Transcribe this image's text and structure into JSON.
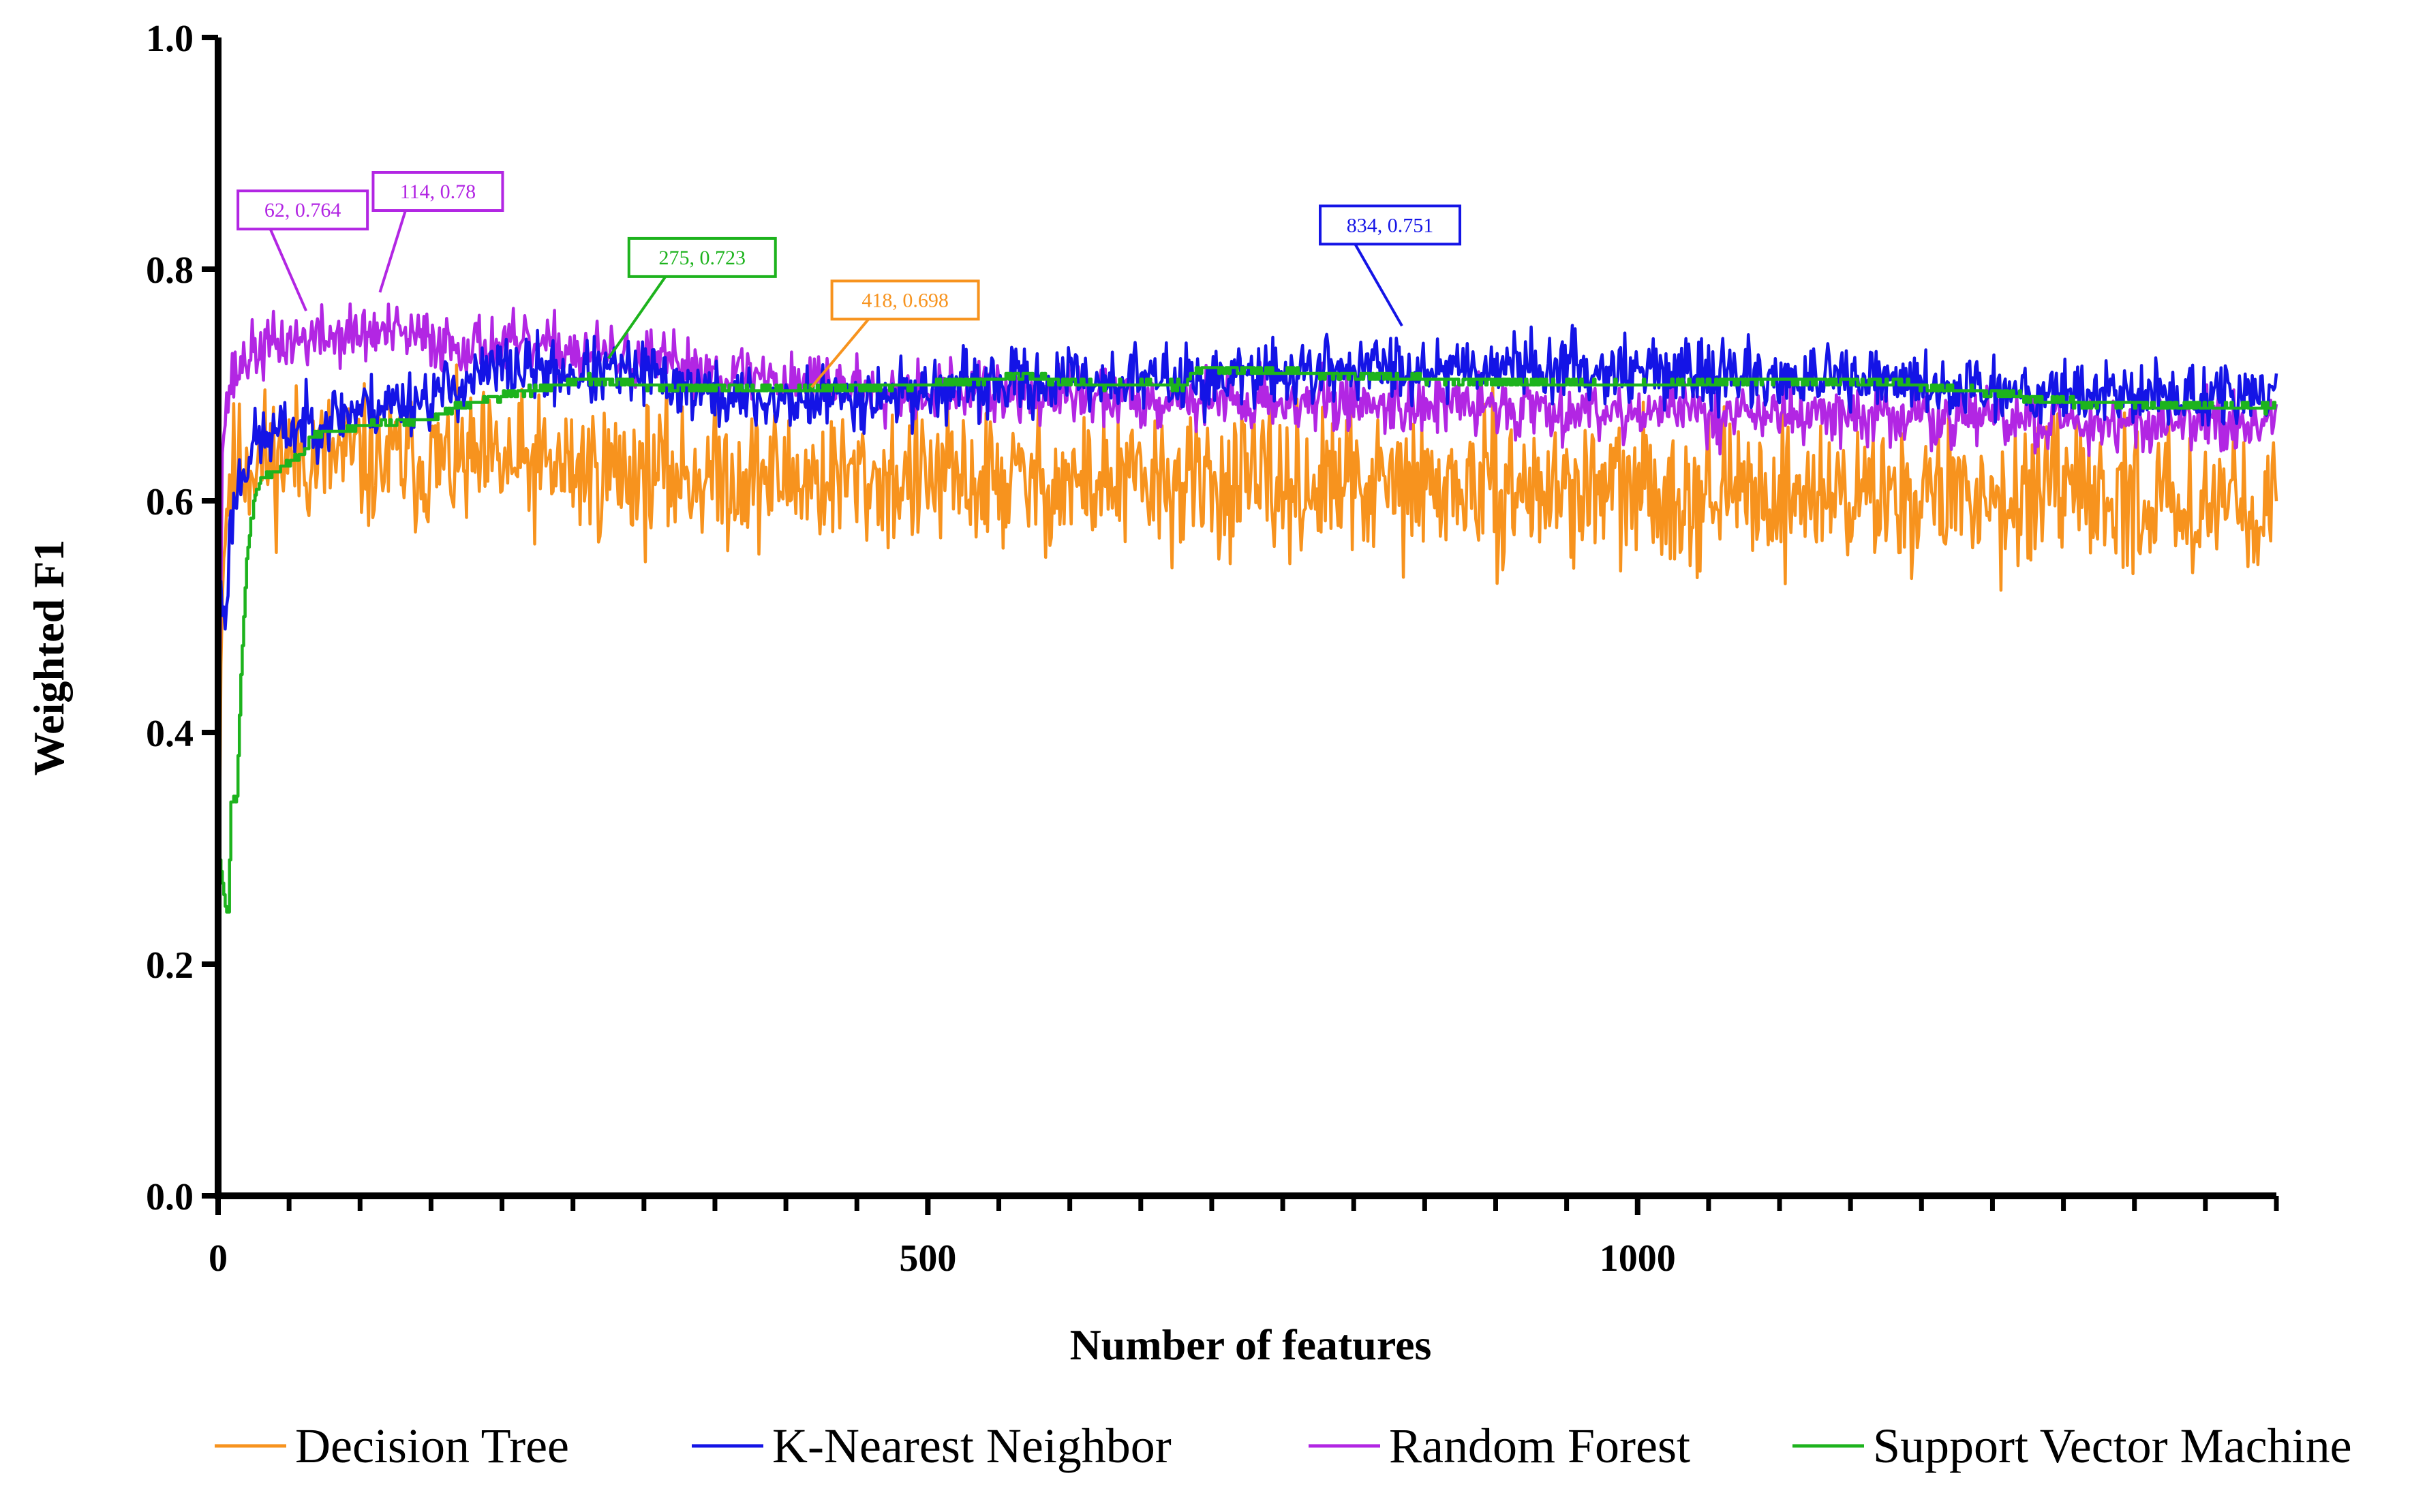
{
  "chart_data": {
    "type": "line",
    "xlabel": "Number of features",
    "ylabel": "Weighted  F1",
    "xlim": [
      0,
      1450
    ],
    "ylim": [
      0,
      1.0
    ],
    "x_ticks": [
      0,
      500,
      1000
    ],
    "x_tick_labels": [
      "0",
      "500",
      "1000"
    ],
    "x_minor_step": 50,
    "y_ticks": [
      0.0,
      0.2,
      0.4,
      0.6,
      0.8,
      1.0
    ],
    "y_tick_labels": [
      "0.0",
      "0.2",
      "0.4",
      "0.6",
      "0.8",
      "1.0"
    ],
    "legend_position": "bottom",
    "series": [
      {
        "name": "Decision Tree",
        "color": "#F7931E",
        "noise": 0.03,
        "seed": 11,
        "profile": [
          [
            1,
            0.35
          ],
          [
            3,
            0.55
          ],
          [
            8,
            0.62
          ],
          [
            20,
            0.635
          ],
          [
            60,
            0.64
          ],
          [
            100,
            0.635
          ],
          [
            200,
            0.63
          ],
          [
            300,
            0.625
          ],
          [
            400,
            0.62
          ],
          [
            600,
            0.615
          ],
          [
            800,
            0.612
          ],
          [
            1000,
            0.608
          ],
          [
            1200,
            0.605
          ],
          [
            1450,
            0.6
          ]
        ]
      },
      {
        "name": "K-Nearest Neighbor",
        "color": "#1414E6",
        "noise": 0.014,
        "seed": 23,
        "profile": [
          [
            1,
            0.52
          ],
          [
            5,
            0.5
          ],
          [
            9,
            0.58
          ],
          [
            15,
            0.62
          ],
          [
            25,
            0.65
          ],
          [
            60,
            0.665
          ],
          [
            100,
            0.68
          ],
          [
            150,
            0.69
          ],
          [
            200,
            0.715
          ],
          [
            250,
            0.71
          ],
          [
            300,
            0.71
          ],
          [
            350,
            0.69
          ],
          [
            400,
            0.685
          ],
          [
            450,
            0.69
          ],
          [
            500,
            0.695
          ],
          [
            600,
            0.705
          ],
          [
            700,
            0.705
          ],
          [
            800,
            0.715
          ],
          [
            900,
            0.718
          ],
          [
            1000,
            0.713
          ],
          [
            1100,
            0.706
          ],
          [
            1200,
            0.7
          ],
          [
            1300,
            0.695
          ],
          [
            1400,
            0.69
          ],
          [
            1450,
            0.69
          ]
        ]
      },
      {
        "name": "Random Forest",
        "color": "#B226E3",
        "noise": 0.013,
        "seed": 37,
        "profile": [
          [
            1,
            0.45
          ],
          [
            3,
            0.65
          ],
          [
            8,
            0.7
          ],
          [
            20,
            0.725
          ],
          [
            40,
            0.735
          ],
          [
            62,
            0.74
          ],
          [
            114,
            0.745
          ],
          [
            170,
            0.735
          ],
          [
            250,
            0.73
          ],
          [
            300,
            0.72
          ],
          [
            400,
            0.705
          ],
          [
            500,
            0.695
          ],
          [
            600,
            0.69
          ],
          [
            800,
            0.685
          ],
          [
            1000,
            0.678
          ],
          [
            1200,
            0.672
          ],
          [
            1450,
            0.665
          ]
        ]
      },
      {
        "name": "Support Vector Machine",
        "color": "#1DB31D",
        "step": 3,
        "noise": 0.003,
        "seed": 53,
        "profile": [
          [
            1,
            0.29
          ],
          [
            5,
            0.25
          ],
          [
            7,
            0.245
          ],
          [
            9,
            0.34
          ],
          [
            13,
            0.345
          ],
          [
            16,
            0.45
          ],
          [
            20,
            0.55
          ],
          [
            25,
            0.6
          ],
          [
            30,
            0.62
          ],
          [
            60,
            0.64
          ],
          [
            65,
            0.655
          ],
          [
            100,
            0.665
          ],
          [
            150,
            0.67
          ],
          [
            165,
            0.68
          ],
          [
            200,
            0.69
          ],
          [
            260,
            0.705
          ],
          [
            300,
            0.7
          ],
          [
            400,
            0.695
          ],
          [
            500,
            0.7
          ],
          [
            560,
            0.708
          ],
          [
            620,
            0.7
          ],
          [
            680,
            0.7
          ],
          [
            690,
            0.715
          ],
          [
            800,
            0.708
          ],
          [
            900,
            0.702
          ],
          [
            1000,
            0.7
          ],
          [
            1100,
            0.705
          ],
          [
            1200,
            0.7
          ],
          [
            1300,
            0.685
          ],
          [
            1450,
            0.68
          ]
        ]
      }
    ],
    "annotations": [
      {
        "series": "Random Forest",
        "x": 62,
        "y": 0.764,
        "label": "62, 0.764",
        "color": "#B226E3"
      },
      {
        "series": "Random Forest",
        "x": 114,
        "y": 0.78,
        "label": "114, 0.78",
        "color": "#B226E3"
      },
      {
        "series": "Support Vector Machine",
        "x": 275,
        "y": 0.723,
        "label": "275, 0.723",
        "color": "#1DB31D"
      },
      {
        "series": "Decision Tree",
        "x": 418,
        "y": 0.698,
        "label": "418, 0.698",
        "color": "#F7931E"
      },
      {
        "series": "K-Nearest Neighbor",
        "x": 834,
        "y": 0.751,
        "label": "834, 0.751",
        "color": "#1414E6"
      }
    ]
  }
}
